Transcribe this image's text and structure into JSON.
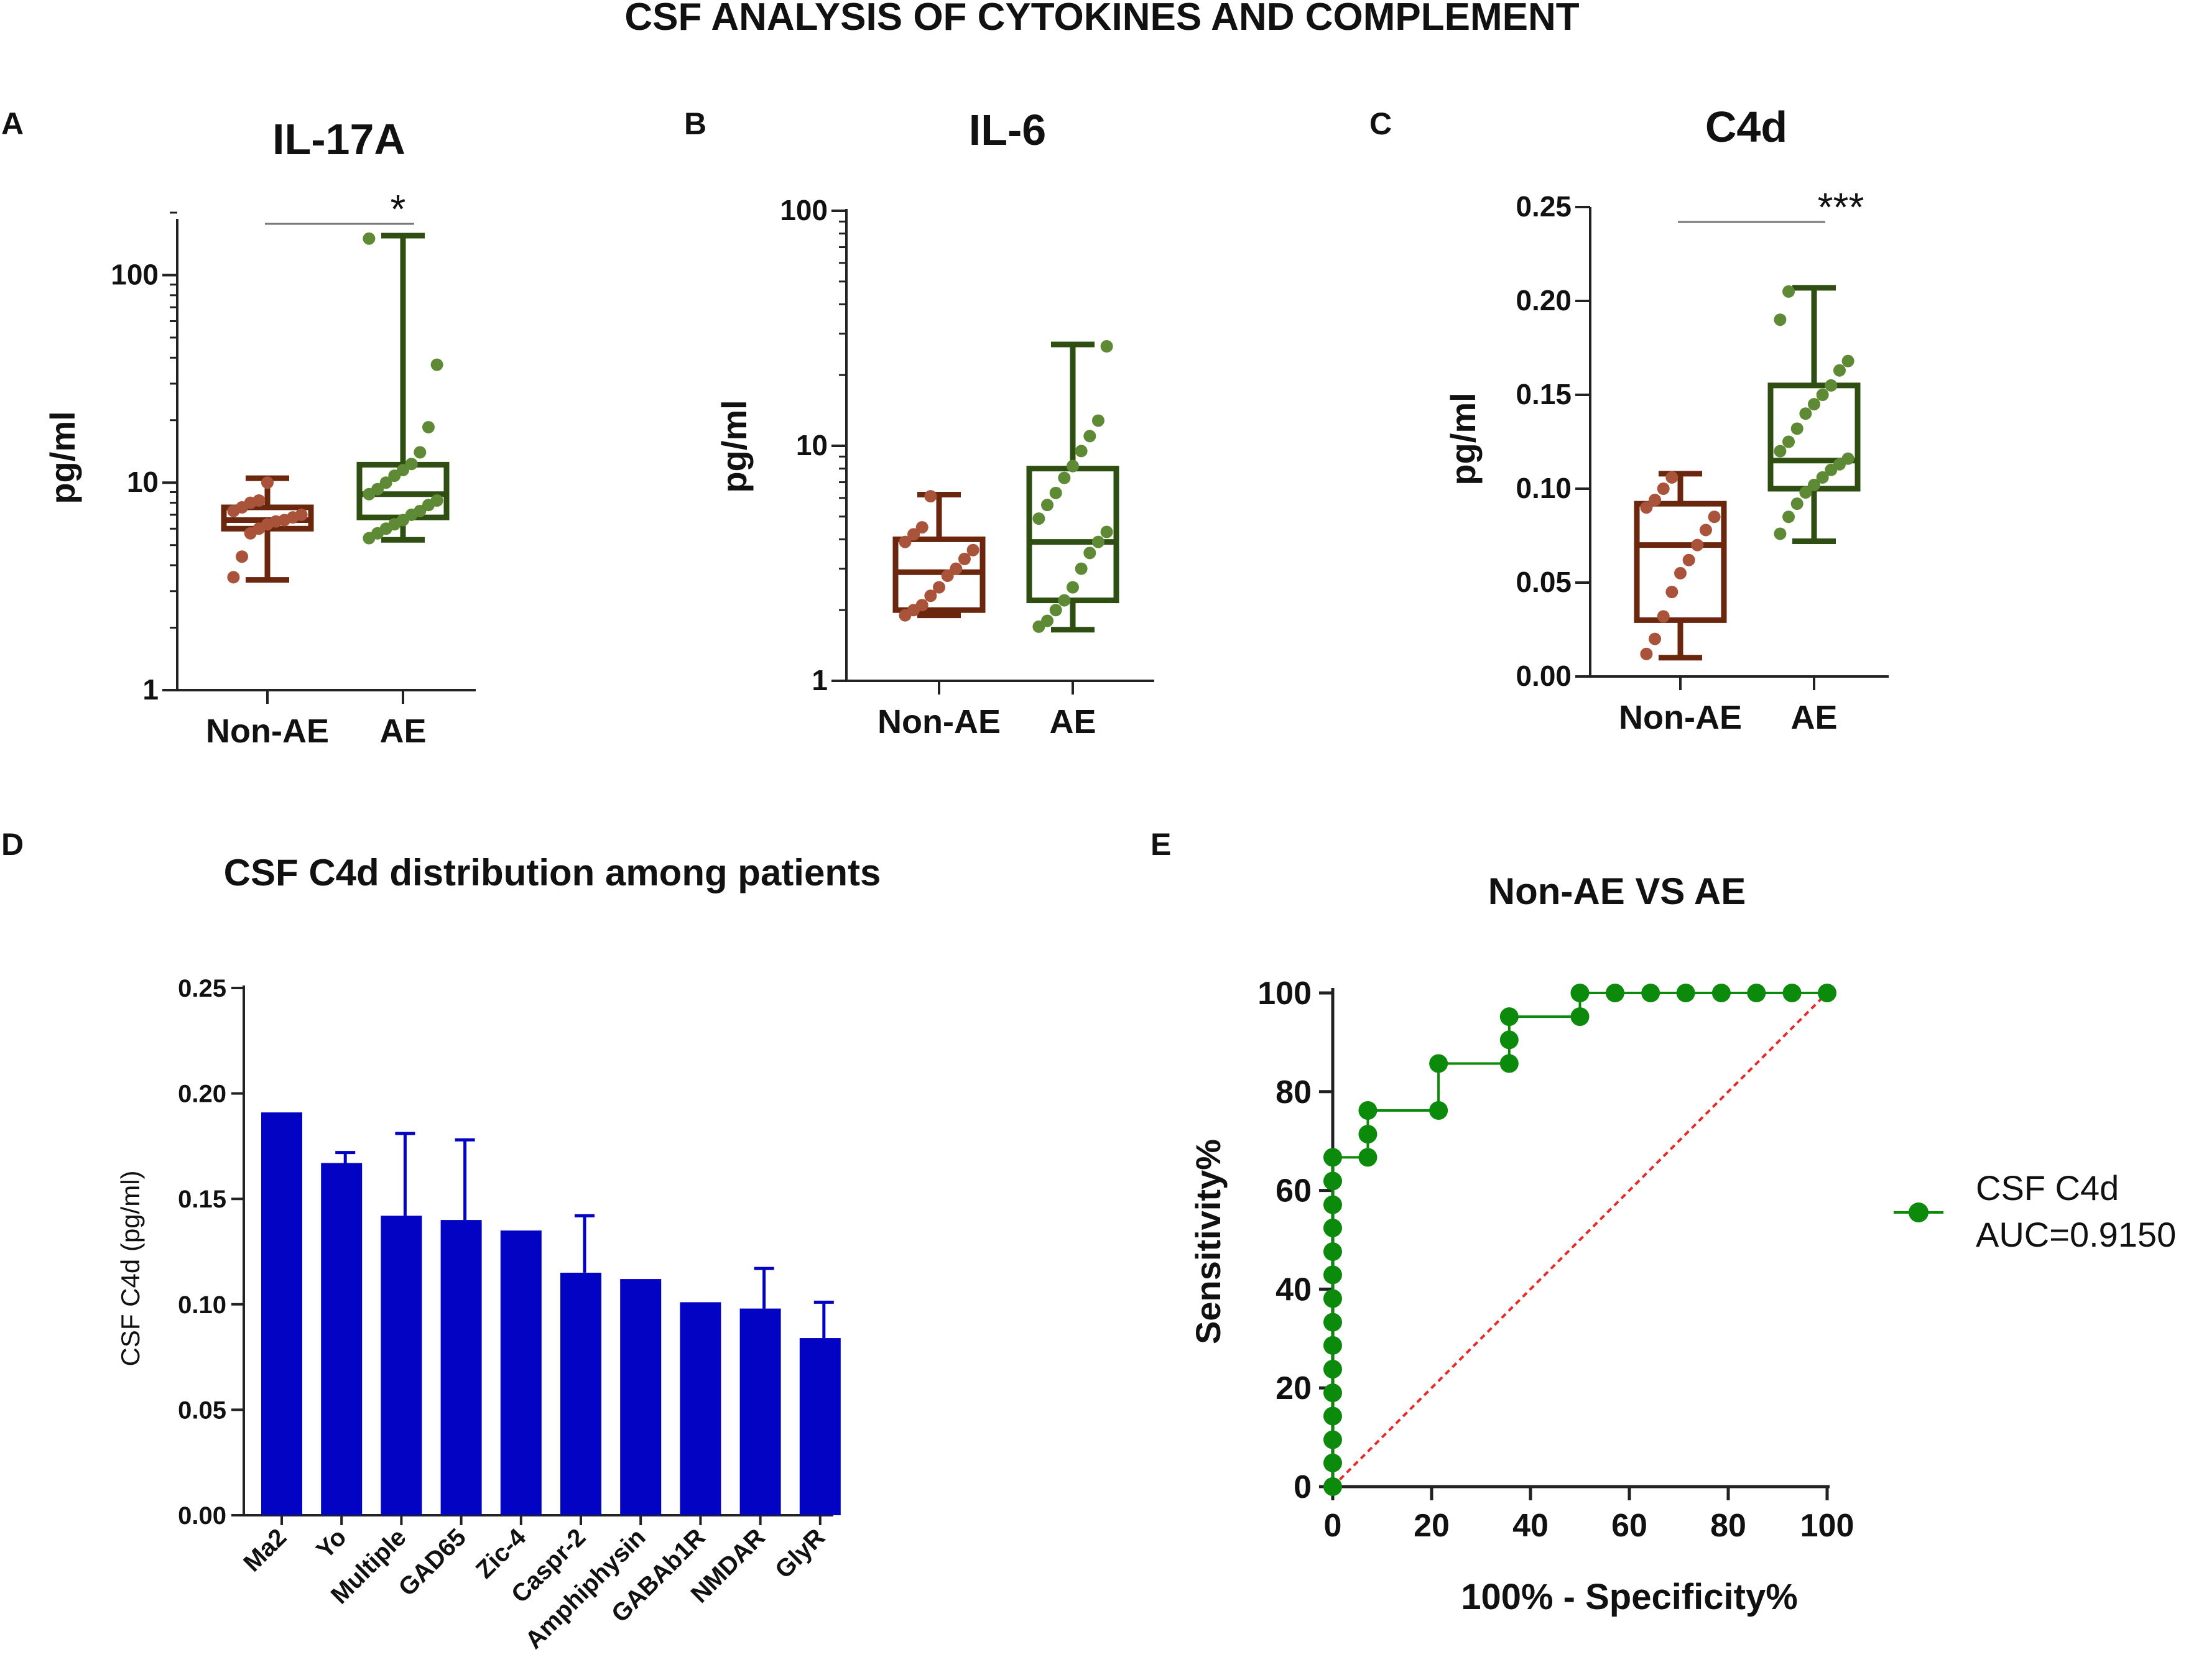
{
  "figure_title": "CSF ANALYSIS OF CYTOKINES AND COMPLEMENT",
  "colors": {
    "non_ae": "#6b260e",
    "non_ae_dot": "#a9533a",
    "ae": "#2f4f12",
    "ae_dot": "#5e8a35",
    "bar": "#0303c4",
    "roc": "#0b8a0b",
    "ref": "#e8292a",
    "axis": "#222222"
  },
  "chart_data": [
    {
      "panel": "A",
      "type": "box",
      "title": "IL-17A",
      "ylabel": "pg/ml",
      "yscale": "log",
      "ylim": [
        1,
        200
      ],
      "yticks": [
        1,
        10,
        100
      ],
      "ytick_labels": [
        "1",
        "10",
        "100"
      ],
      "categories": [
        "Non-AE",
        "AE"
      ],
      "boxes": [
        {
          "min": 3.4,
          "q1": 6.0,
          "median": 6.6,
          "q3": 7.6,
          "max": 10.5,
          "points": [
            3.5,
            4.4,
            5.7,
            6.0,
            6.3,
            6.5,
            6.6,
            6.8,
            7.0,
            7.3,
            7.6,
            8.0,
            8.2,
            10.0
          ]
        },
        {
          "min": 5.3,
          "q1": 6.8,
          "median": 8.8,
          "q3": 12.2,
          "max": 155,
          "points": [
            5.4,
            5.7,
            6.0,
            6.3,
            6.6,
            7.0,
            7.3,
            7.8,
            8.2,
            8.8,
            9.3,
            10.0,
            10.8,
            11.5,
            12.3,
            14.0,
            18.5,
            37.0,
            150
          ]
        }
      ],
      "significance": [
        {
          "from": "Non-AE",
          "to": "AE",
          "label": "*"
        }
      ]
    },
    {
      "panel": "B",
      "type": "box",
      "title": "IL-6",
      "ylabel": "pg/ml",
      "yscale": "log",
      "ylim": [
        1,
        100
      ],
      "yticks": [
        1,
        10,
        100
      ],
      "ytick_labels": [
        "1",
        "10",
        "100"
      ],
      "categories": [
        "Non-AE",
        "AE"
      ],
      "boxes": [
        {
          "min": 1.9,
          "q1": 2.0,
          "median": 2.9,
          "q3": 4.0,
          "max": 6.2,
          "points": [
            1.9,
            2.0,
            2.1,
            2.3,
            2.5,
            2.8,
            3.0,
            3.3,
            3.6,
            3.9,
            4.2,
            4.5,
            6.1
          ]
        },
        {
          "min": 1.65,
          "q1": 2.2,
          "median": 3.9,
          "q3": 8.0,
          "max": 27.0,
          "points": [
            1.7,
            1.8,
            2.0,
            2.2,
            2.5,
            3.0,
            3.5,
            3.9,
            4.3,
            4.9,
            5.6,
            6.3,
            7.3,
            8.2,
            9.5,
            11.0,
            12.8,
            26.5
          ]
        }
      ]
    },
    {
      "panel": "C",
      "type": "box",
      "title": "C4d",
      "ylabel": "pg/ml",
      "yscale": "linear",
      "ylim": [
        0,
        0.25
      ],
      "yticks": [
        0,
        0.05,
        0.1,
        0.15,
        0.2,
        0.25
      ],
      "ytick_labels": [
        "0.00",
        "0.05",
        "0.10",
        "0.15",
        "0.20",
        "0.25"
      ],
      "categories": [
        "Non-AE",
        "AE"
      ],
      "boxes": [
        {
          "min": 0.01,
          "q1": 0.03,
          "median": 0.07,
          "q3": 0.092,
          "max": 0.108,
          "points": [
            0.012,
            0.02,
            0.032,
            0.045,
            0.055,
            0.062,
            0.07,
            0.078,
            0.085,
            0.09,
            0.094,
            0.1,
            0.106
          ]
        },
        {
          "min": 0.072,
          "q1": 0.1,
          "median": 0.115,
          "q3": 0.155,
          "max": 0.207,
          "points": [
            0.076,
            0.085,
            0.092,
            0.098,
            0.102,
            0.106,
            0.11,
            0.113,
            0.116,
            0.12,
            0.125,
            0.132,
            0.14,
            0.145,
            0.15,
            0.155,
            0.163,
            0.168,
            0.19,
            0.205
          ]
        }
      ],
      "significance": [
        {
          "from": "Non-AE",
          "to": "AE",
          "label": "***"
        }
      ]
    },
    {
      "panel": "D",
      "type": "bar",
      "title": "CSF C4d distribution among patients",
      "ylabel": "CSF C4d (pg/ml)",
      "ylim": [
        0,
        0.25
      ],
      "yticks": [
        0,
        0.05,
        0.1,
        0.15,
        0.2,
        0.25
      ],
      "ytick_labels": [
        "0.00",
        "0.05",
        "0.10",
        "0.15",
        "0.20",
        "0.25"
      ],
      "categories": [
        "Ma2",
        "Yo",
        "Multiple",
        "GAD65",
        "Zic-4",
        "Caspr-2",
        "Amphiphysin",
        "GABAb1R",
        "NMDAR",
        "GlyR"
      ],
      "values": [
        0.191,
        0.167,
        0.142,
        0.14,
        0.135,
        0.115,
        0.112,
        0.101,
        0.098,
        0.084
      ],
      "error_upper": [
        0,
        0.005,
        0.039,
        0.038,
        0,
        0.027,
        0,
        0,
        0.019,
        0.017
      ]
    },
    {
      "panel": "E",
      "type": "line",
      "title": "Non-AE VS AE",
      "xlabel": "100% - Specificity%",
      "ylabel": "Sensitivity%",
      "xlim": [
        0,
        100
      ],
      "ylim": [
        0,
        100
      ],
      "xticks": [
        0,
        20,
        40,
        60,
        80,
        100
      ],
      "yticks": [
        0,
        20,
        40,
        60,
        80,
        100
      ],
      "series": [
        {
          "name": "CSF C4d",
          "x": [
            0,
            0,
            0,
            0,
            0,
            0,
            0,
            0,
            0,
            0,
            0,
            0,
            0,
            0,
            0,
            7.1,
            7.1,
            7.1,
            21.4,
            21.4,
            35.7,
            35.7,
            35.7,
            50,
            50,
            57.1,
            64.3,
            71.4,
            78.6,
            85.7,
            92.9,
            100
          ],
          "y": [
            0,
            4.8,
            9.5,
            14.3,
            19.0,
            23.8,
            28.6,
            33.3,
            38.1,
            42.9,
            47.6,
            52.4,
            57.1,
            61.9,
            66.7,
            66.7,
            71.4,
            76.2,
            76.2,
            85.7,
            85.7,
            90.5,
            95.2,
            95.2,
            100,
            100,
            100,
            100,
            100,
            100,
            100,
            100
          ]
        }
      ],
      "reference_line": {
        "x": [
          0,
          100
        ],
        "y": [
          0,
          100
        ]
      },
      "legend": {
        "name": "CSF C4d",
        "auc_label": "AUC=0.9150",
        "position": "right"
      }
    }
  ]
}
